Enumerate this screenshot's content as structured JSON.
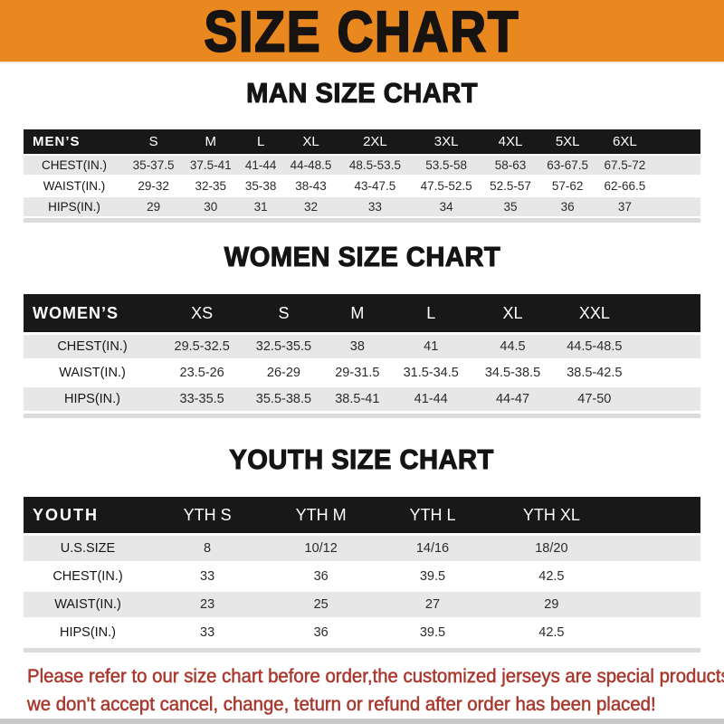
{
  "banner": {
    "title": "SIZE CHART",
    "bg_color": "#EA8820",
    "text_color": "#171310"
  },
  "colors": {
    "table_band": "#181818",
    "row_shade": "#E7E7E7",
    "footer_text": "#A8392F",
    "bottom_strip": "#C9C9C9"
  },
  "chart_data": [
    {
      "type": "table",
      "title": "MAN SIZE CHART",
      "corner_label": "MEN’S",
      "columns": [
        "S",
        "M",
        "L",
        "XL",
        "2XL",
        "3XL",
        "4XL",
        "5XL",
        "6XL"
      ],
      "rows": [
        {
          "label": "CHEST(IN.)",
          "values": [
            "35-37.5",
            "37.5-41",
            "41-44",
            "44-48.5",
            "48.5-53.5",
            "53.5-58",
            "58-63",
            "63-67.5",
            "67.5-72"
          ]
        },
        {
          "label": "WAIST(IN.)",
          "values": [
            "29-32",
            "32-35",
            "35-38",
            "38-43",
            "43-47.5",
            "47.5-52.5",
            "52.5-57",
            "57-62",
            "62-66.5"
          ]
        },
        {
          "label": "HIPS(IN.)",
          "values": [
            "29",
            "30",
            "31",
            "32",
            "33",
            "34",
            "35",
            "36",
            "37"
          ]
        }
      ]
    },
    {
      "type": "table",
      "title": "WOMEN SIZE CHART",
      "corner_label": "WOMEN’S",
      "columns": [
        "XS",
        "S",
        "M",
        "L",
        "XL",
        "XXL"
      ],
      "rows": [
        {
          "label": "CHEST(IN.)",
          "values": [
            "29.5-32.5",
            "32.5-35.5",
            "38",
            "41",
            "44.5",
            "44.5-48.5"
          ]
        },
        {
          "label": "WAIST(IN.)",
          "values": [
            "23.5-26",
            "26-29",
            "29-31.5",
            "31.5-34.5",
            "34.5-38.5",
            "38.5-42.5"
          ]
        },
        {
          "label": "HIPS(IN.)",
          "values": [
            "33-35.5",
            "35.5-38.5",
            "38.5-41",
            "41-44",
            "44-47",
            "47-50"
          ]
        }
      ]
    },
    {
      "type": "table",
      "title": "YOUTH SIZE CHART",
      "corner_label": "YOUTH",
      "columns": [
        "YTH S",
        "YTH M",
        "YTH L",
        "YTH XL"
      ],
      "rows": [
        {
          "label": "U.S.SIZE",
          "values": [
            "8",
            "10/12",
            "14/16",
            "18/20"
          ]
        },
        {
          "label": "CHEST(IN.)",
          "values": [
            "33",
            "36",
            "39.5",
            "42.5"
          ]
        },
        {
          "label": "WAIST(IN.)",
          "values": [
            "23",
            "25",
            "27",
            "29"
          ]
        },
        {
          "label": "HIPS(IN.)",
          "values": [
            "33",
            "36",
            "39.5",
            "42.5"
          ]
        }
      ]
    }
  ],
  "footer": {
    "line1": "Please refer to our size chart before order,the customized jerseys are special products,",
    "line2": "we don't accept cancel, change, teturn or refund after order has been placed!"
  }
}
